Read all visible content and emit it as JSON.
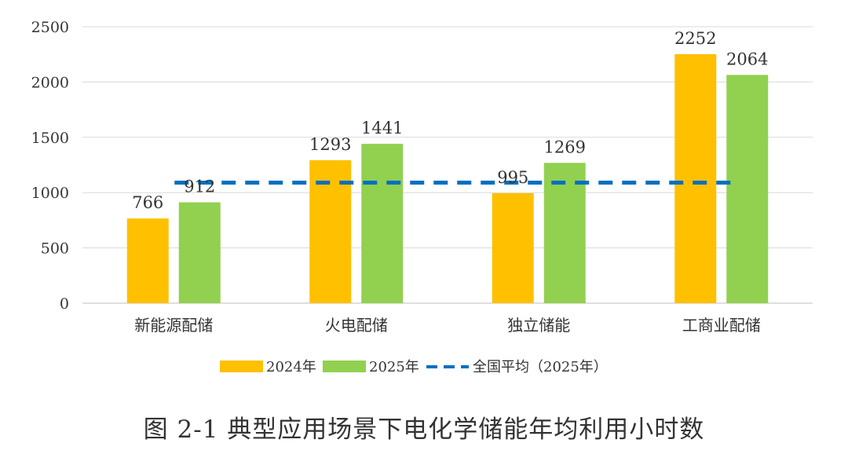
{
  "chart_data": {
    "type": "bar",
    "caption": "图 2-1 典型应用场景下电化学储能年均利用小时数",
    "categories": [
      "新能源配储",
      "火电配储",
      "独立储能",
      "工商业配储"
    ],
    "series": [
      {
        "name": "2024年",
        "color": "#FFC000",
        "values": [
          766,
          1293,
          995,
          2252
        ]
      },
      {
        "name": "2025年",
        "color": "#92D050",
        "values": [
          912,
          1441,
          1269,
          2064
        ]
      }
    ],
    "reference_line": {
      "name": "全国平均（2025年）",
      "color": "#0070C0",
      "style": "dashed",
      "value": 1090
    },
    "yticks": [
      0,
      500,
      1000,
      1500,
      2000,
      2500
    ],
    "ylim": [
      0,
      2500
    ],
    "grid": true,
    "legend_position": "bottom"
  }
}
